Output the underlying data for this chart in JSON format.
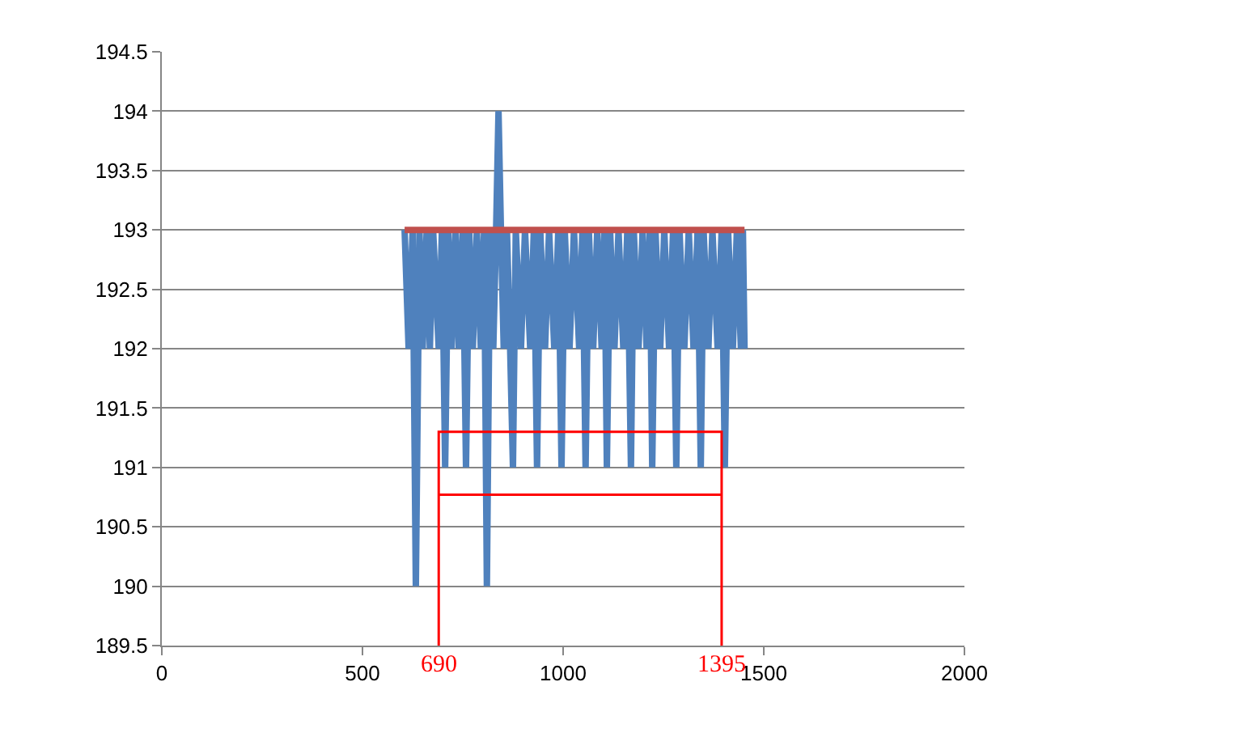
{
  "chart_data": {
    "type": "line",
    "series": [
      {
        "color": "#4f81bd",
        "x": [
          605,
          615,
          625,
          633,
          642,
          650,
          660,
          668,
          676,
          690,
          698,
          706,
          714,
          722,
          732,
          740,
          750,
          758,
          766,
          775,
          785,
          795,
          803,
          810,
          818,
          826,
          833,
          839,
          845,
          852,
          860,
          868,
          875,
          882,
          895,
          905,
          918,
          927,
          935,
          943,
          955,
          965,
          978,
          988,
          996,
          1004,
          1016,
          1027,
          1040,
          1048,
          1056,
          1064,
          1075,
          1085,
          1096,
          1103,
          1109,
          1117,
          1128,
          1138,
          1150,
          1160,
          1169,
          1176,
          1188,
          1198,
          1208,
          1216,
          1222,
          1230,
          1242,
          1252,
          1264,
          1274,
          1282,
          1290,
          1302,
          1313,
          1325,
          1335,
          1343,
          1350,
          1362,
          1372,
          1385,
          1395,
          1403,
          1411,
          1423,
          1433,
          1443,
          1448,
          1452
        ],
        "values": [
          193,
          192,
          193,
          190,
          193,
          192,
          193,
          192,
          193,
          192,
          193,
          191,
          193,
          192,
          193,
          192,
          193,
          191,
          193,
          192,
          193,
          192,
          193,
          190,
          193,
          192,
          193,
          194,
          193,
          192,
          193,
          192,
          191,
          193,
          192,
          193,
          192,
          193,
          191,
          193,
          192,
          193,
          192,
          193,
          191,
          193,
          192,
          193,
          192,
          193,
          191,
          193,
          192,
          193,
          192,
          193,
          191,
          193,
          192,
          193,
          192,
          193,
          191,
          193,
          192,
          193,
          192,
          193,
          191,
          193,
          192,
          193,
          192,
          193,
          191,
          193,
          192,
          193,
          192,
          193,
          191,
          193,
          192,
          193,
          192,
          193,
          191,
          193,
          192,
          193,
          192,
          193,
          192
        ]
      },
      {
        "color": "#c0504d",
        "x": [
          605,
          1452
        ],
        "values": [
          193,
          193
        ]
      },
      {
        "color": "#ff0000",
        "x": [
          690,
          690,
          1395,
          1395
        ],
        "values": [
          189.5,
          191.3,
          191.3,
          189.5
        ]
      },
      {
        "color": "#ff0000",
        "x": [
          690,
          1395
        ],
        "values": [
          190.77,
          190.77
        ]
      }
    ],
    "xlim": [
      0,
      2000
    ],
    "xticks": [
      0,
      500,
      1000,
      1500,
      2000
    ],
    "ylim": [
      189.5,
      194.5
    ],
    "yticks": [
      189.5,
      190,
      190.5,
      191,
      191.5,
      192,
      192.5,
      193,
      193.5,
      194,
      194.5
    ],
    "grid": "y",
    "annotations": [
      {
        "text": "690",
        "x": 690,
        "y": 189.5
      },
      {
        "text": "1395",
        "x": 1395,
        "y": 189.5
      }
    ]
  }
}
